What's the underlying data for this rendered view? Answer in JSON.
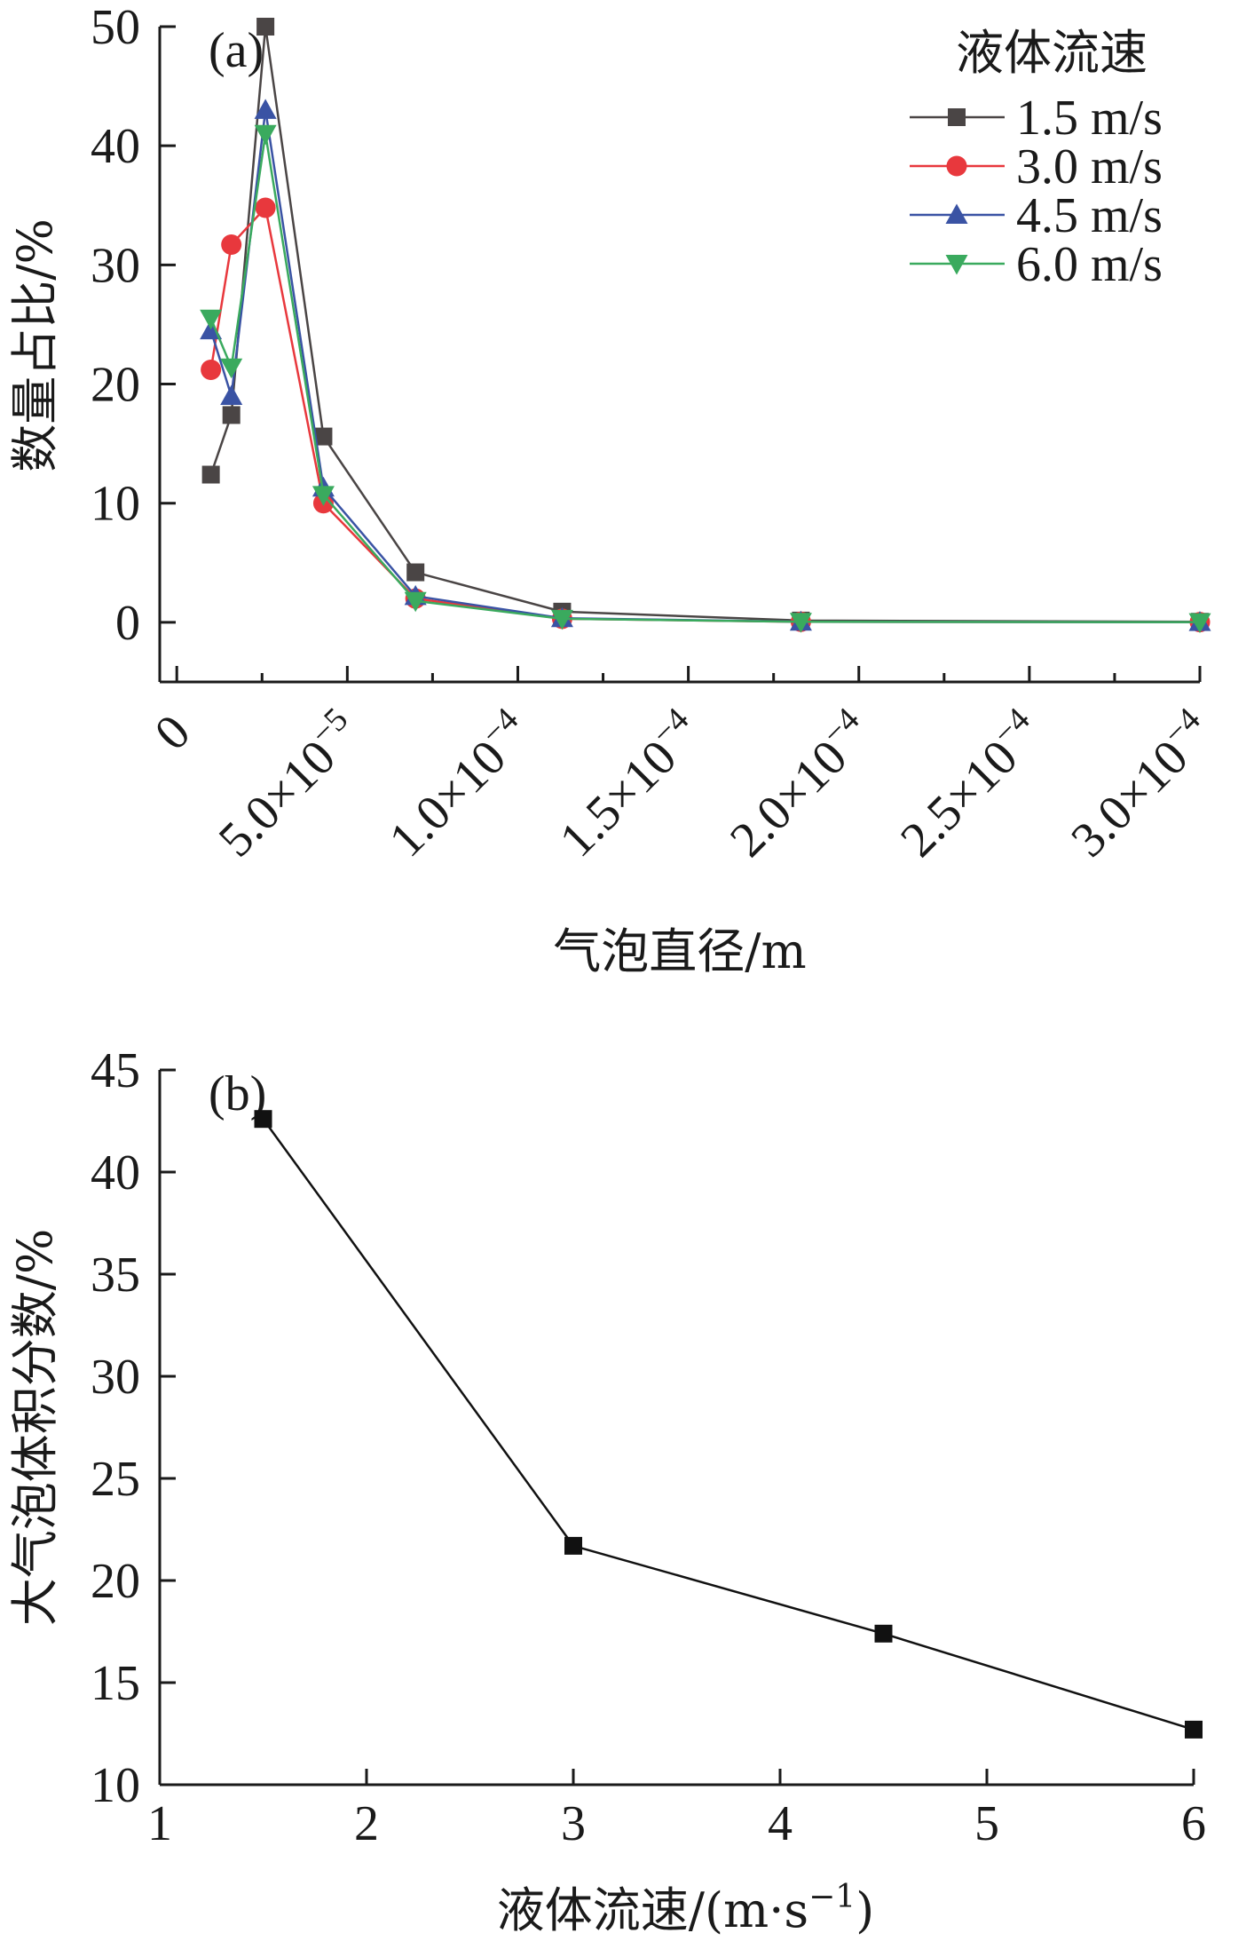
{
  "chart_data": [
    {
      "type": "line",
      "panel_label": "(a)",
      "xlabel": "气泡直径/m",
      "ylabel": "数量占比/%",
      "xlim": [
        -5e-06,
        0.0003
      ],
      "ylim": [
        -5,
        50
      ],
      "xticks": [
        0,
        5e-05,
        0.0001,
        0.00015,
        0.0002,
        0.00025,
        0.0003
      ],
      "xtick_labels": [
        "0",
        "5.0×10",
        "1.0×10",
        "1.5×10",
        "2.0×10",
        "2.5×10",
        "3.0×10"
      ],
      "xtick_exponents": [
        "",
        "−5",
        "−4",
        "−4",
        "−4",
        "−4",
        "−4"
      ],
      "yticks": [
        0,
        10,
        20,
        30,
        40,
        50
      ],
      "ytick_labels": [
        "0",
        "10",
        "20",
        "30",
        "40",
        "50"
      ],
      "legend": {
        "title": "液体流速",
        "position": "top-right"
      },
      "x": [
        1e-05,
        1.6e-05,
        2.6e-05,
        4.3e-05,
        7e-05,
        0.000113,
        0.000183,
        0.0003
      ],
      "series": [
        {
          "name": "1.5 m/s",
          "color": "#4a4545",
          "marker": "square",
          "values": [
            12.4,
            17.4,
            50,
            15.6,
            4.2,
            0.9,
            0.15,
            0.05
          ]
        },
        {
          "name": "3.0 m/s",
          "color": "#e8383d",
          "marker": "circle",
          "values": [
            21.2,
            31.7,
            34.8,
            10.0,
            2.0,
            0.3,
            0.05,
            0.02
          ]
        },
        {
          "name": "4.5 m/s",
          "color": "#3a53a4",
          "marker": "triangle-up",
          "values": [
            24.5,
            19.0,
            43.0,
            11.3,
            2.2,
            0.35,
            0.05,
            0.02
          ]
        },
        {
          "name": "6.0 m/s",
          "color": "#3aaa5e",
          "marker": "triangle-down",
          "values": [
            25.5,
            21.4,
            41.0,
            10.7,
            1.8,
            0.3,
            0.05,
            0.02
          ]
        }
      ]
    },
    {
      "type": "line",
      "panel_label": "(b)",
      "xlabel": "液体流速/(m·s",
      "xlabel_exponent": "−1",
      "xlabel_suffix": ")",
      "ylabel": "大气泡体积分数/%",
      "xlim": [
        1,
        6
      ],
      "ylim": [
        10,
        45
      ],
      "xticks": [
        1,
        2,
        3,
        4,
        5,
        6
      ],
      "xtick_labels": [
        "1",
        "2",
        "3",
        "4",
        "5",
        "6"
      ],
      "yticks": [
        10,
        15,
        20,
        25,
        30,
        35,
        40,
        45
      ],
      "ytick_labels": [
        "10",
        "15",
        "20",
        "25",
        "30",
        "35",
        "40",
        "45"
      ],
      "x": [
        1.5,
        3.0,
        4.5,
        6.0
      ],
      "series": [
        {
          "color": "#111111",
          "marker": "square",
          "values": [
            42.6,
            21.7,
            17.4,
            12.7
          ]
        }
      ]
    }
  ]
}
